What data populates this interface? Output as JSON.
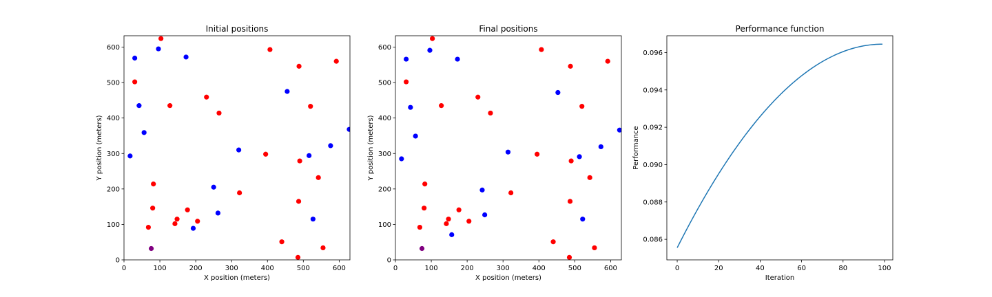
{
  "chart_data": [
    {
      "type": "scatter",
      "title": "Initial positions",
      "xlabel": "X position (meters)",
      "ylabel": "Y position (meters)",
      "xlim": [
        0,
        630
      ],
      "ylim": [
        0,
        632
      ],
      "xticks": [
        0,
        100,
        200,
        300,
        400,
        500,
        600
      ],
      "yticks": [
        0,
        100,
        200,
        300,
        400,
        500,
        600
      ],
      "colors": {
        "red": "#ff0000",
        "blue": "#0000ff",
        "purple": "#800080"
      },
      "grid": false,
      "series": [
        {
          "color": "red",
          "points": [
            [
              103,
              624
            ],
            [
              407,
              593
            ],
            [
              592,
              560
            ],
            [
              30,
              502
            ],
            [
              488,
              546
            ],
            [
              230,
              459
            ],
            [
              128,
              435
            ],
            [
              265,
              414
            ],
            [
              520,
              433
            ],
            [
              395,
              298
            ],
            [
              490,
              279
            ],
            [
              82,
              214
            ],
            [
              542,
              232
            ],
            [
              322,
              189
            ],
            [
              80,
              146
            ],
            [
              487,
              165
            ],
            [
              177,
              141
            ],
            [
              148,
              115
            ],
            [
              142,
              102
            ],
            [
              205,
              109
            ],
            [
              68,
              92
            ],
            [
              440,
              51
            ],
            [
              555,
              34
            ],
            [
              485,
              7
            ]
          ]
        },
        {
          "color": "blue",
          "points": [
            [
              96,
              595
            ],
            [
              173,
              572
            ],
            [
              30,
              569
            ],
            [
              455,
              475
            ],
            [
              42,
              435
            ],
            [
              56,
              359
            ],
            [
              17,
              293
            ],
            [
              320,
              310
            ],
            [
              516,
              294
            ],
            [
              576,
              322
            ],
            [
              628,
              368
            ],
            [
              250,
              205
            ],
            [
              262,
              132
            ],
            [
              193,
              89
            ],
            [
              527,
              115
            ]
          ]
        },
        {
          "color": "purple",
          "points": [
            [
              76,
              32
            ]
          ]
        }
      ]
    },
    {
      "type": "scatter",
      "title": "Final positions",
      "xlabel": "X position (meters)",
      "ylabel": "Y position (meters)",
      "xlim": [
        0,
        630
      ],
      "ylim": [
        0,
        632
      ],
      "xticks": [
        0,
        100,
        200,
        300,
        400,
        500,
        600
      ],
      "yticks": [
        0,
        100,
        200,
        300,
        400,
        500,
        600
      ],
      "colors": {
        "red": "#ff0000",
        "blue": "#0000ff",
        "purple": "#800080"
      },
      "grid": false,
      "series": [
        {
          "color": "red",
          "points": [
            [
              103,
              624
            ],
            [
              407,
              593
            ],
            [
              592,
              560
            ],
            [
              30,
              502
            ],
            [
              488,
              546
            ],
            [
              230,
              459
            ],
            [
              128,
              435
            ],
            [
              265,
              414
            ],
            [
              520,
              433
            ],
            [
              395,
              298
            ],
            [
              490,
              279
            ],
            [
              82,
              214
            ],
            [
              542,
              232
            ],
            [
              322,
              189
            ],
            [
              80,
              146
            ],
            [
              487,
              165
            ],
            [
              177,
              141
            ],
            [
              148,
              115
            ],
            [
              142,
              102
            ],
            [
              205,
              109
            ],
            [
              68,
              92
            ],
            [
              440,
              51
            ],
            [
              555,
              34
            ],
            [
              485,
              7
            ]
          ]
        },
        {
          "color": "blue",
          "points": [
            [
              96,
              591
            ],
            [
              173,
              566
            ],
            [
              30,
              566
            ],
            [
              453,
              472
            ],
            [
              42,
              430
            ],
            [
              56,
              349
            ],
            [
              17,
              285
            ],
            [
              314,
              304
            ],
            [
              513,
              291
            ],
            [
              573,
              319
            ],
            [
              625,
              366
            ],
            [
              242,
              197
            ],
            [
              249,
              127
            ],
            [
              157,
              71
            ],
            [
              522,
              115
            ]
          ]
        },
        {
          "color": "purple",
          "points": [
            [
              74,
              32
            ]
          ]
        }
      ]
    },
    {
      "type": "line",
      "title": "Performance function",
      "xlabel": "Iteration",
      "ylabel": "Performance",
      "xlim": [
        -5,
        104
      ],
      "ylim": [
        0.0849,
        0.0969
      ],
      "xticks": [
        0,
        20,
        40,
        60,
        80,
        100
      ],
      "yticks": [
        0.086,
        0.088,
        0.09,
        0.092,
        0.094,
        0.096
      ],
      "ytick_labels": [
        "0.086",
        "0.088",
        "0.090",
        "0.092",
        "0.094",
        "0.096"
      ],
      "grid": false,
      "series": [
        {
          "color": "#1f77b4",
          "x_start": 0,
          "x_end": 99,
          "y_start": 0.08555,
          "y_end": 0.09645,
          "shape": "quadratic-saturating"
        }
      ]
    }
  ]
}
